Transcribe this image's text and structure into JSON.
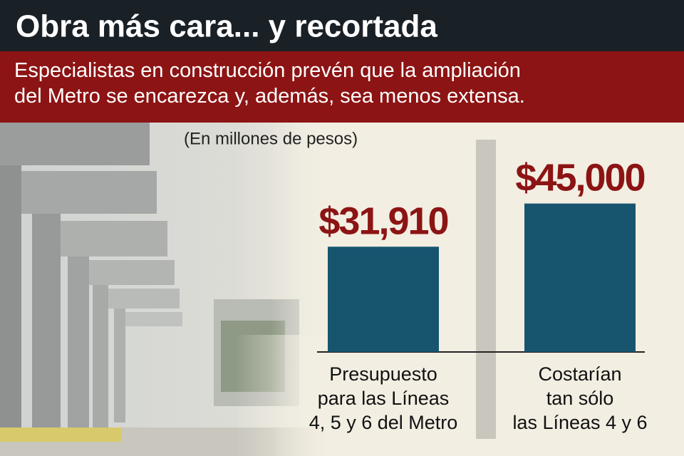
{
  "chart_data": {
    "type": "bar",
    "title": "Obra más cara... y recortada",
    "subtitle": "Especialistas en construcción prevén que la ampliación\ndel Metro se encarezca y, además, sea menos extensa.",
    "unit_note": "(En millones de pesos)",
    "categories": [
      "Presupuesto\npara las Líneas\n4, 5 y 6 del Metro",
      "Costarían\ntan sólo\nlas Líneas 4 y 6"
    ],
    "values": [
      31910,
      45000
    ],
    "value_labels": [
      "$31,910",
      "$45,000"
    ],
    "color": "#17556f",
    "label_color": "#8c1414"
  }
}
